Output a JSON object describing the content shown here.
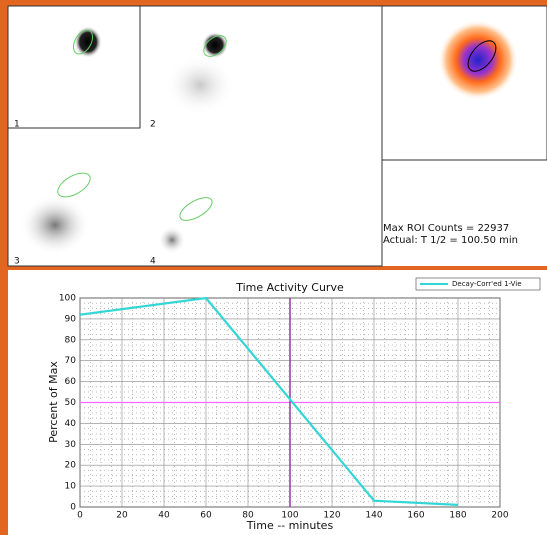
{
  "panels": {
    "labels": [
      "1",
      "2",
      "3",
      "4"
    ]
  },
  "roi_info": [
    "Max ROI Counts = 22937",
    "Actual: T 1/2 = 100.50 min"
  ],
  "chart_data": {
    "type": "line",
    "title": "Time Activity Curve",
    "x_label": "Time -- minutes",
    "y_label": "Percent of Max",
    "x": [
      0,
      60,
      140,
      180
    ],
    "series": [
      {
        "name": "Decay-Corr'ed 1-Vie",
        "color": "#33d6d6",
        "values": [
          92,
          100,
          3,
          1
        ]
      }
    ],
    "xlim": [
      0,
      200
    ],
    "ylim": [
      0,
      100
    ],
    "xticks": [
      0,
      20,
      40,
      60,
      80,
      100,
      120,
      140,
      160,
      180,
      200
    ],
    "yticks": [
      0,
      10,
      20,
      30,
      40,
      50,
      60,
      70,
      80,
      90,
      100
    ],
    "reference_lines": {
      "y": 50,
      "y_color": "#ff66ff",
      "x": 100,
      "x_color": "#9933aa"
    },
    "grid": true,
    "legend": "top-right"
  }
}
